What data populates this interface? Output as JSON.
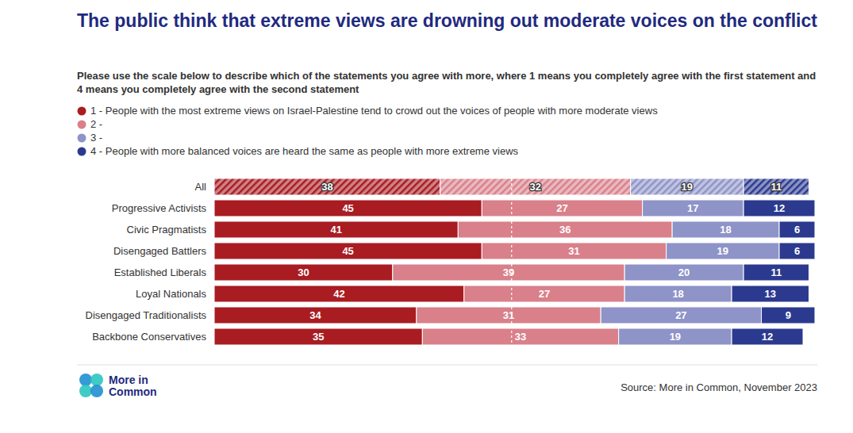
{
  "chart_data": {
    "type": "bar",
    "orientation": "horizontal",
    "stacked": true,
    "data_labels": true,
    "tick_labels": "y",
    "grid": true,
    "title": "The public think that extreme views are drowning out moderate voices on the conflict",
    "subtitle": "Please use the scale below to describe which of the statements you agree with more, where 1 means you completely agree with the first statement and 4 means you completely agree with the second statement",
    "source": "Source: More in Common, November 2023",
    "logo_text": [
      "More in",
      "Common"
    ],
    "legend": "top-left",
    "xlim": [
      0,
      101
    ],
    "xticks": [
      50
    ],
    "categories": [
      "All",
      "Progressive Activists",
      "Civic Pragmatists",
      "Disengaged Battlers",
      "Established Liberals",
      "Loyal Nationals",
      "Disengaged Traditionalists",
      "Backbone Conservatives"
    ],
    "series": [
      {
        "name": "1 - People with the most extreme views on Israel-Palestine tend to crowd out the voices of people with more moderate views",
        "color": "#a81c22",
        "values": [
          38,
          45,
          41,
          45,
          30,
          42,
          34,
          35
        ]
      },
      {
        "name": "2 -",
        "color": "#d9808a",
        "values": [
          32,
          27,
          36,
          31,
          39,
          27,
          31,
          33
        ]
      },
      {
        "name": "3 -",
        "color": "#8e93c8",
        "values": [
          19,
          17,
          18,
          19,
          20,
          18,
          27,
          19
        ]
      },
      {
        "name": "4 - People with more balanced voices are heard the same as people with more extreme views",
        "color": "#2b3a8f",
        "values": [
          11,
          12,
          6,
          6,
          11,
          13,
          9,
          12
        ]
      }
    ]
  }
}
